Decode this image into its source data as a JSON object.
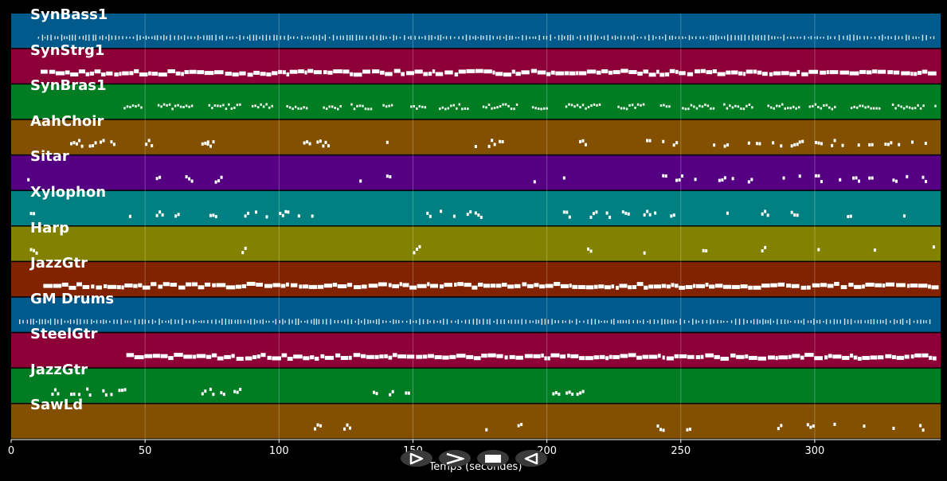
{
  "chart_data": {
    "type": "piano-roll",
    "xlabel": "Temps (secondes)",
    "xlim": [
      0,
      347
    ],
    "xticks": [
      0,
      50,
      100,
      150,
      200,
      250,
      300
    ],
    "tracks": [
      {
        "name": "SynBass1",
        "color": "#005a8c",
        "density": "dense-short",
        "start": 10,
        "end": 345,
        "notes": []
      },
      {
        "name": "SynStrg1",
        "color": "#8c0037",
        "density": "continuous",
        "start": 11,
        "end": 345,
        "notes": []
      },
      {
        "name": "SynBras1",
        "color": "#007d23",
        "density": "clustered",
        "start": 42,
        "end": 345,
        "notes": []
      },
      {
        "name": "AahChoir",
        "color": "#825000",
        "density": "sparse",
        "start": 22,
        "end": 345,
        "notes": [
          22,
          25,
          29,
          33,
          37,
          50,
          71,
          73,
          109,
          114,
          117,
          140,
          173,
          178,
          182,
          212,
          237,
          243,
          247,
          262,
          266,
          275,
          278,
          284,
          287,
          291,
          294,
          300,
          306,
          310,
          316,
          320,
          326,
          331,
          336,
          341
        ]
      },
      {
        "name": "Sitar",
        "color": "#550082",
        "density": "sparse",
        "start": 6,
        "end": 345,
        "notes": [
          6,
          54,
          65,
          76,
          130,
          140,
          195,
          206,
          243,
          248,
          255,
          264,
          269,
          275,
          288,
          294,
          300,
          309,
          314,
          320,
          329,
          334,
          340
        ]
      },
      {
        "name": "Xylophon",
        "color": "#008080",
        "density": "sparse",
        "start": 7,
        "end": 345,
        "notes": [
          7,
          44,
          54,
          61,
          74,
          87,
          91,
          95,
          100,
          103,
          107,
          112,
          155,
          160,
          165,
          170,
          173,
          206,
          216,
          222,
          228,
          236,
          240,
          246,
          267,
          280,
          291,
          312,
          333
        ]
      },
      {
        "name": "Harp",
        "color": "#828200",
        "density": "sparse",
        "start": 7,
        "end": 345,
        "notes": [
          7,
          86,
          150,
          215,
          236,
          258,
          280,
          301,
          322,
          344
        ]
      },
      {
        "name": "JazzGtr",
        "color": "#822300",
        "density": "continuous",
        "start": 12,
        "end": 345,
        "notes": []
      },
      {
        "name": "GM Drums",
        "color": "#005a8c",
        "density": "dense-short",
        "start": 3,
        "end": 344,
        "notes": []
      },
      {
        "name": "SteelGtr",
        "color": "#8c0037",
        "density": "continuous",
        "start": 43,
        "end": 345,
        "notes": []
      },
      {
        "name": "JazzGtr",
        "color": "#007d23",
        "density": "sparse",
        "start": 15,
        "end": 212,
        "notes": [
          15,
          22,
          25,
          28,
          34,
          37,
          40,
          71,
          74,
          78,
          83,
          135,
          141,
          147,
          202,
          207,
          211
        ]
      },
      {
        "name": "SawLd",
        "color": "#825000",
        "density": "sparse",
        "start": 113,
        "end": 340,
        "notes": [
          113,
          124,
          177,
          189,
          241,
          252,
          286,
          297,
          307,
          318,
          329,
          339
        ]
      }
    ]
  },
  "controls": {
    "play_icon": "play-icon",
    "forward_icon": "forward-icon",
    "stop_icon": "stop-icon",
    "rewind_icon": "rewind-icon"
  }
}
